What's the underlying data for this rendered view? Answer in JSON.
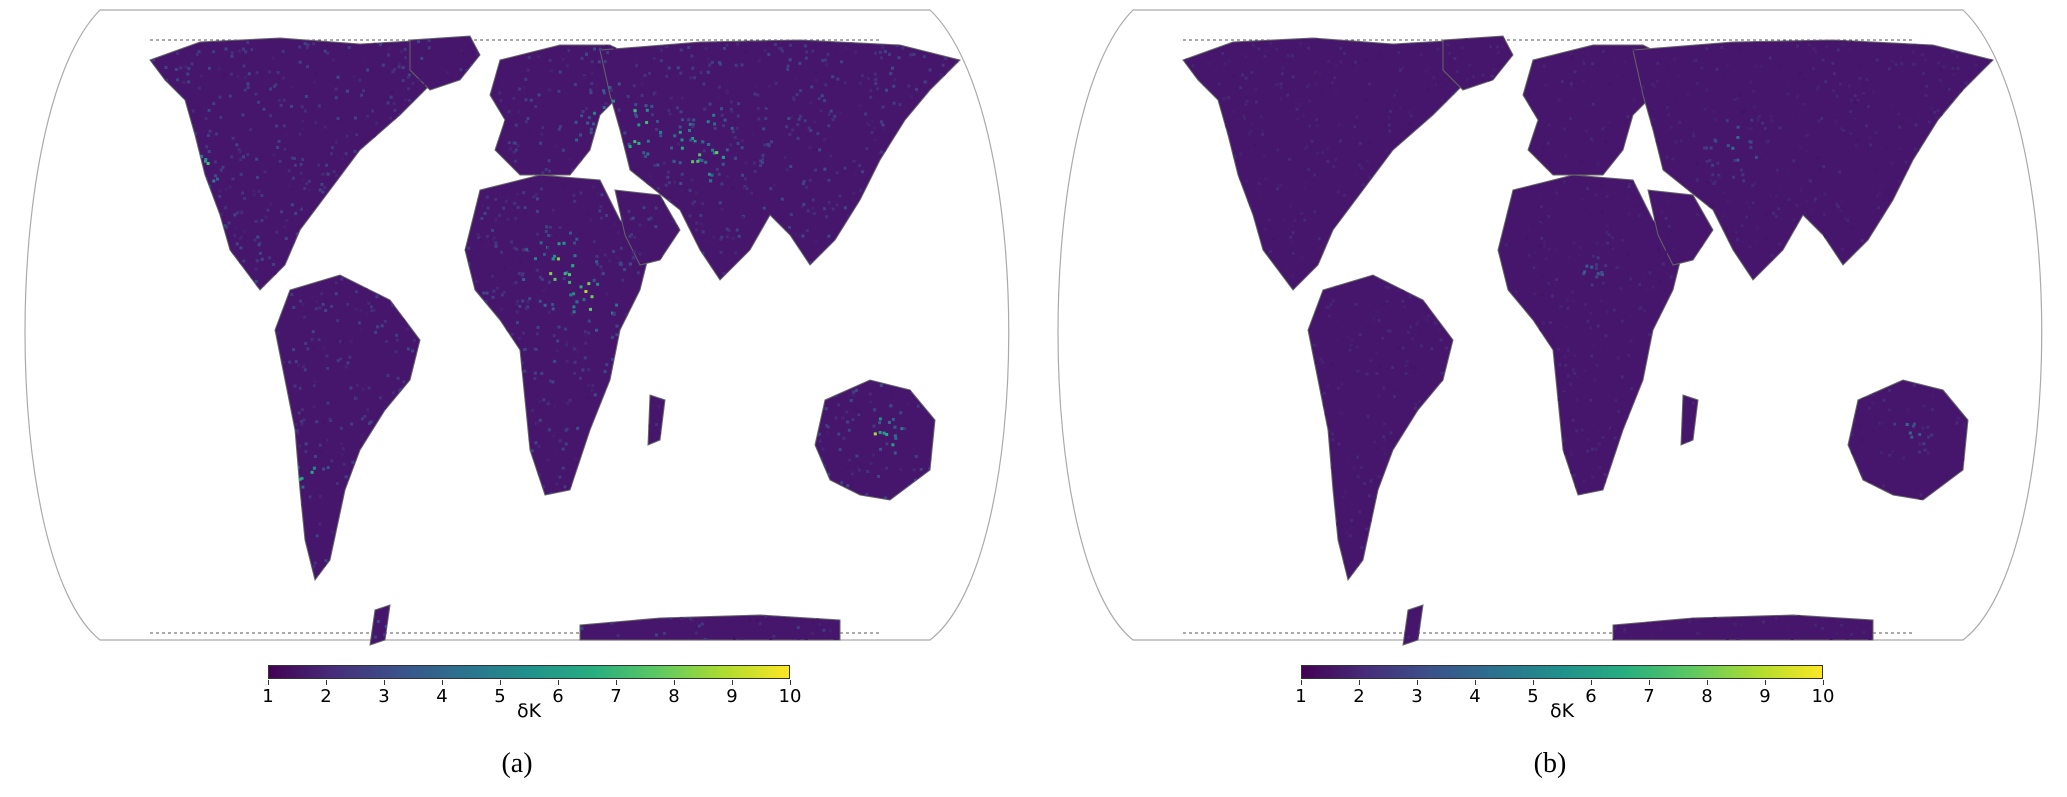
{
  "figure": {
    "panels": [
      {
        "id": "a",
        "caption": "(a)",
        "colorbar": {
          "label": "δK",
          "min": 1,
          "max": 10,
          "ticks": [
            "1",
            "2",
            "3",
            "4",
            "5",
            "6",
            "7",
            "8",
            "9",
            "10"
          ]
        },
        "intensity": "high"
      },
      {
        "id": "b",
        "caption": "(b)",
        "colorbar": {
          "label": "δK",
          "min": 1,
          "max": 10,
          "ticks": [
            "1",
            "2",
            "3",
            "4",
            "5",
            "6",
            "7",
            "8",
            "9",
            "10"
          ]
        },
        "intensity": "low"
      }
    ],
    "colormap": "viridis",
    "colors": {
      "ocean": "#ffffff",
      "land_base": "#45166b",
      "coast": "#666666",
      "frame": "#aaaaaa",
      "viridis": [
        "#440154",
        "#472d7b",
        "#3b528b",
        "#2c728e",
        "#21918c",
        "#28ae80",
        "#5ec962",
        "#addc30",
        "#fde725"
      ]
    }
  }
}
